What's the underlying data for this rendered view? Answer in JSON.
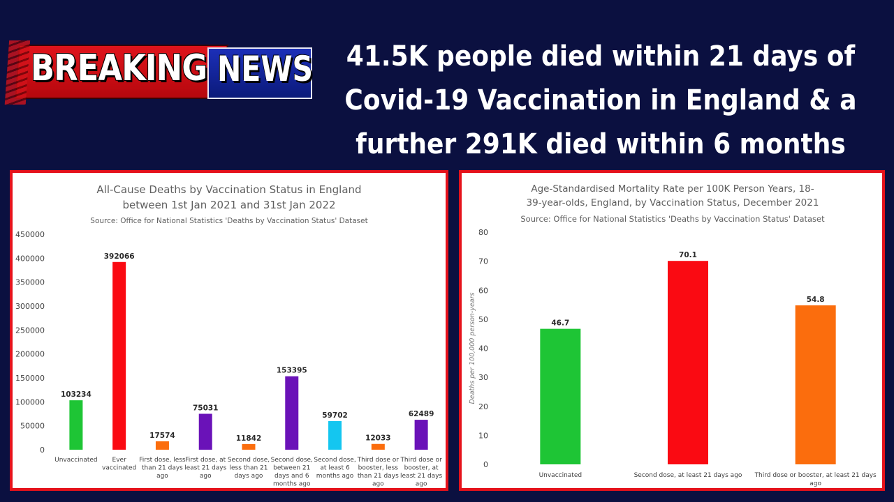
{
  "logo": {
    "word1": "BREAKING",
    "word2": "NEWS"
  },
  "headline": {
    "lines": [
      "41.5K people died within 21 days of",
      "Covid-19 Vaccination in England & a",
      "further 291K died within 6 months"
    ]
  },
  "chart_data": [
    {
      "type": "bar",
      "title_lines": [
        "All-Cause Deaths by Vaccination Status in England",
        "between 1st Jan 2021 and 31st Jan 2022"
      ],
      "subtitle": "Source: Office for National Statistics 'Deaths by Vaccination Status' Dataset",
      "ylabel": "",
      "ylim": [
        0,
        450000
      ],
      "yticks": [
        0,
        50000,
        100000,
        150000,
        200000,
        250000,
        300000,
        350000,
        400000,
        450000
      ],
      "categories": [
        [
          "Unvaccinated"
        ],
        [
          "Ever",
          "vaccinated"
        ],
        [
          "First dose, less",
          "than 21 days",
          "ago"
        ],
        [
          "First dose, at",
          "least 21 days",
          "ago"
        ],
        [
          "Second dose,",
          "less than 21",
          "days ago"
        ],
        [
          "Second dose,",
          "between 21",
          "days and 6",
          "months ago"
        ],
        [
          "Second dose,",
          "at least 6",
          "months ago"
        ],
        [
          "Third dose or",
          "booster, less",
          "than 21 days",
          "ago"
        ],
        [
          "Third dose or",
          "booster, at",
          "least 21 days",
          "ago"
        ]
      ],
      "values": [
        103234,
        392066,
        17574,
        75031,
        11842,
        153395,
        59702,
        12033,
        62489
      ],
      "colors": [
        "#1ec535",
        "#fa0a12",
        "#fb6d0d",
        "#6a12b8",
        "#fb6d0d",
        "#6a12b8",
        "#14c6f0",
        "#fb6d0d",
        "#6a12b8"
      ],
      "grid": false
    },
    {
      "type": "bar",
      "title_lines": [
        "Age-Standardised Mortality Rate per 100K Person Years, 18-",
        "39-year-olds, England, by Vaccination Status, December 2021"
      ],
      "subtitle": "Source: Office for National Statistics 'Deaths by Vaccination Status' Dataset",
      "ylabel": "Deaths per 100,000 person-years",
      "ylim": [
        0,
        80
      ],
      "yticks": [
        0,
        10,
        20,
        30,
        40,
        50,
        60,
        70,
        80
      ],
      "categories": [
        [
          "Unvaccinated"
        ],
        [
          "Second dose, at least 21 days ago"
        ],
        [
          "Third dose or booster, at least 21 days",
          "ago"
        ]
      ],
      "values": [
        46.7,
        70.1,
        54.8
      ],
      "value_labels": [
        "46.7",
        "70.1",
        "54.8"
      ],
      "colors": [
        "#1ec535",
        "#fa0a12",
        "#fb6d0d"
      ],
      "grid": false
    }
  ]
}
